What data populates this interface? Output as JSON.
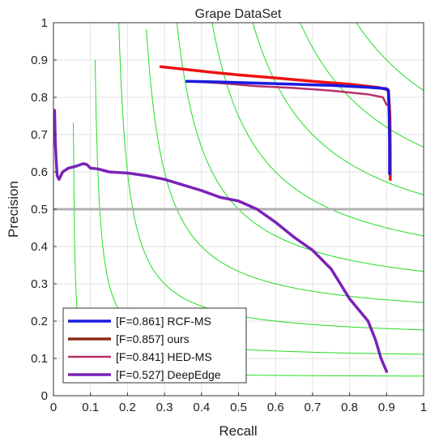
{
  "chart_data": {
    "type": "line",
    "title": "Grape DataSet",
    "xlabel": "Recall",
    "ylabel": "Precision",
    "xlim": [
      0,
      1
    ],
    "ylim": [
      0,
      1
    ],
    "xticks": [
      "0",
      "0.1",
      "0.2",
      "0.3",
      "0.4",
      "0.5",
      "0.6",
      "0.7",
      "0.8",
      "0.9",
      "1"
    ],
    "yticks": [
      "0",
      "0.1",
      "0.2",
      "0.3",
      "0.4",
      "0.5",
      "0.6",
      "0.7",
      "0.8",
      "0.9",
      "1"
    ],
    "grid": true,
    "legend_position": "bottom-left",
    "reference_line": {
      "y": 0.5,
      "color": "#b0b0b0"
    },
    "iso_f_contours": [
      0.1,
      0.2,
      0.3,
      0.4,
      0.5,
      0.6,
      0.7,
      0.8,
      0.9
    ],
    "iso_f_color": "#22dd22",
    "series": [
      {
        "name": "[F=0.861] RCF-MS",
        "color": "#1a1adf",
        "points": [
          [
            0.36,
            0.843
          ],
          [
            0.45,
            0.841
          ],
          [
            0.55,
            0.838
          ],
          [
            0.65,
            0.835
          ],
          [
            0.75,
            0.832
          ],
          [
            0.85,
            0.827
          ],
          [
            0.9,
            0.823
          ],
          [
            0.905,
            0.815
          ],
          [
            0.907,
            0.75
          ],
          [
            0.908,
            0.68
          ],
          [
            0.908,
            0.595
          ]
        ]
      },
      {
        "name": "[F=0.857] ours",
        "color": "#ee1111",
        "points": [
          [
            0.29,
            0.882
          ],
          [
            0.4,
            0.87
          ],
          [
            0.5,
            0.86
          ],
          [
            0.6,
            0.852
          ],
          [
            0.7,
            0.843
          ],
          [
            0.8,
            0.835
          ],
          [
            0.88,
            0.826
          ],
          [
            0.905,
            0.82
          ],
          [
            0.909,
            0.75
          ],
          [
            0.91,
            0.65
          ],
          [
            0.91,
            0.58
          ]
        ]
      },
      {
        "name": "[F=0.841] HED-MS",
        "color": "#b8306a",
        "points": [
          [
            0.36,
            0.843
          ],
          [
            0.45,
            0.838
          ],
          [
            0.55,
            0.83
          ],
          [
            0.65,
            0.825
          ],
          [
            0.75,
            0.818
          ],
          [
            0.85,
            0.808
          ],
          [
            0.89,
            0.8
          ],
          [
            0.9,
            0.78
          ]
        ]
      },
      {
        "name": "[F=0.527] DeepEdge",
        "color": "#7b22b8",
        "points": [
          [
            0.003,
            0.765
          ],
          [
            0.005,
            0.68
          ],
          [
            0.008,
            0.62
          ],
          [
            0.01,
            0.59
          ],
          [
            0.015,
            0.58
          ],
          [
            0.025,
            0.6
          ],
          [
            0.04,
            0.61
          ],
          [
            0.06,
            0.615
          ],
          [
            0.08,
            0.622
          ],
          [
            0.09,
            0.62
          ],
          [
            0.1,
            0.61
          ],
          [
            0.12,
            0.608
          ],
          [
            0.15,
            0.6
          ],
          [
            0.2,
            0.597
          ],
          [
            0.25,
            0.59
          ],
          [
            0.3,
            0.58
          ],
          [
            0.35,
            0.565
          ],
          [
            0.4,
            0.55
          ],
          [
            0.45,
            0.532
          ],
          [
            0.5,
            0.522
          ],
          [
            0.55,
            0.5
          ],
          [
            0.6,
            0.465
          ],
          [
            0.65,
            0.425
          ],
          [
            0.7,
            0.39
          ],
          [
            0.75,
            0.34
          ],
          [
            0.8,
            0.26
          ],
          [
            0.85,
            0.2
          ],
          [
            0.87,
            0.15
          ],
          [
            0.885,
            0.1
          ],
          [
            0.9,
            0.065
          ]
        ]
      }
    ]
  }
}
